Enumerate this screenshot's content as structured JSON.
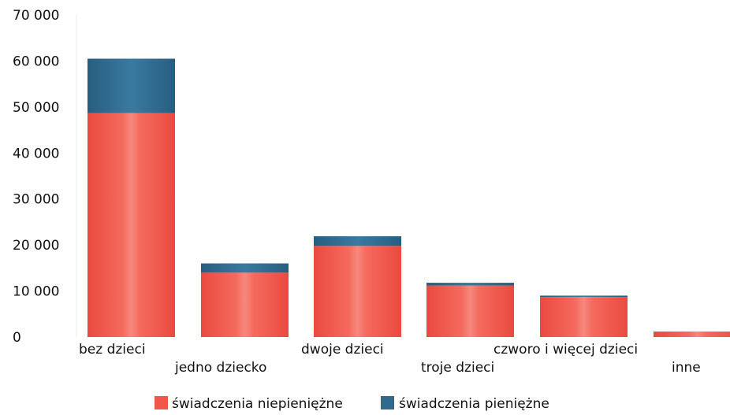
{
  "chart_data": {
    "type": "bar",
    "stacked": true,
    "categories": [
      "bez dzieci",
      "jedno dziecko",
      "dwoje dzieci",
      "troje dzieci",
      "czworo i więcej dzieci",
      "inne"
    ],
    "series": [
      {
        "name": "świadczenia niepieniężne",
        "color": "#f0564a",
        "values": [
          48700,
          14000,
          19800,
          11200,
          8700,
          1200
        ]
      },
      {
        "name": "świadczenia pieniężne",
        "color": "#2e6a8e",
        "values": [
          11800,
          2000,
          2100,
          600,
          300,
          0
        ]
      }
    ],
    "ylim": [
      0,
      70000
    ],
    "yticks": [
      "0",
      "10 000",
      "20 000",
      "30 000",
      "40 000",
      "50 000",
      "60 000",
      "70 000"
    ],
    "grid": false,
    "legend_position": "bottom-center"
  }
}
